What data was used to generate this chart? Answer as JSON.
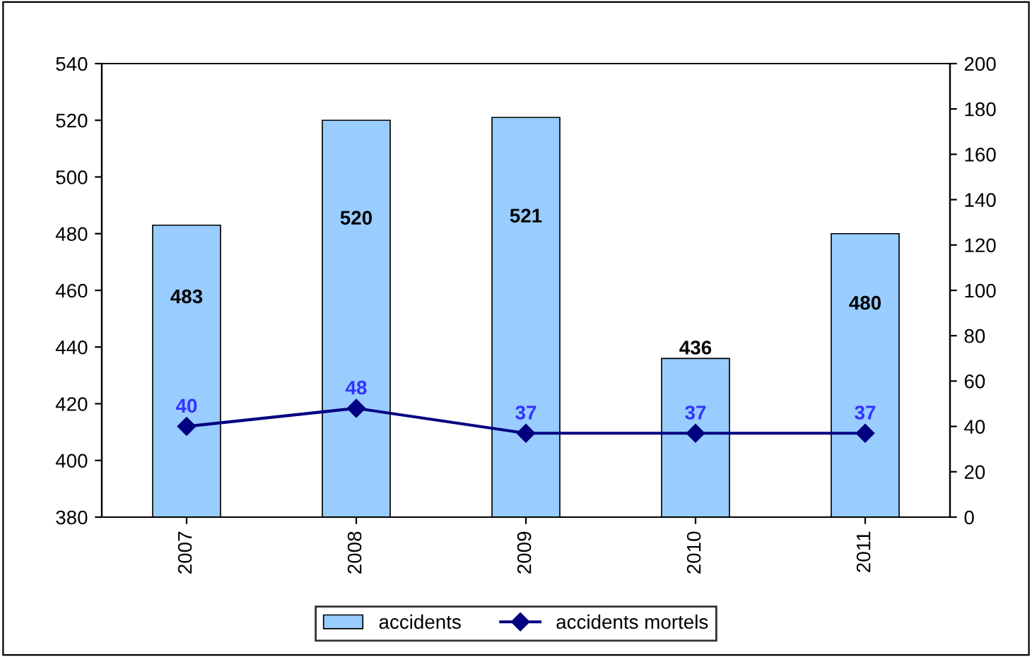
{
  "chart_data": {
    "type": "bar",
    "categories": [
      "2007",
      "2008",
      "2009",
      "2010",
      "2011"
    ],
    "series": [
      {
        "name": "accidents",
        "color": "#99ccff",
        "values": [
          483,
          520,
          521,
          436,
          480
        ]
      },
      {
        "name": "accidents mortels",
        "type": "line",
        "axis": "y2",
        "color": "#000080",
        "marker": "diamond",
        "values": [
          40,
          48,
          37,
          37,
          37
        ]
      }
    ],
    "ylim": [
      380,
      540
    ],
    "yticks": [
      380,
      400,
      420,
      440,
      460,
      480,
      500,
      520,
      540
    ],
    "y2lim": [
      0,
      200
    ],
    "y2ticks": [
      0,
      20,
      40,
      60,
      80,
      100,
      120,
      140,
      160,
      180,
      200
    ],
    "data_labels": true,
    "grid": false,
    "legend": "bottom"
  }
}
